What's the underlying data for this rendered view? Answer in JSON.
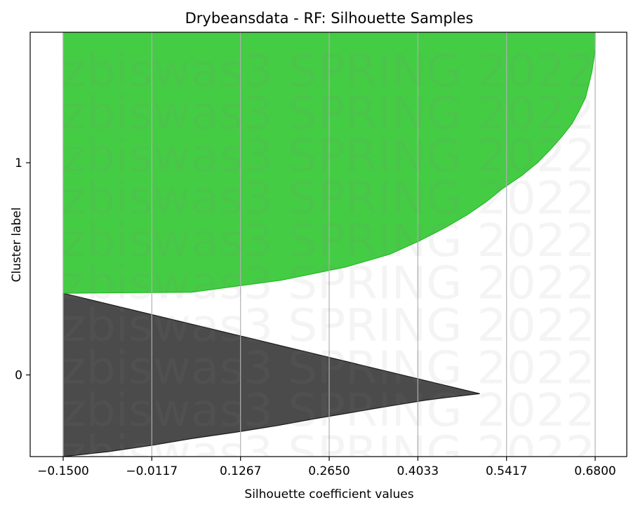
{
  "chart_data": {
    "type": "area",
    "title": "Drybeansdata - RF: Silhouette Samples",
    "xlabel": "Silhouette coefficient values",
    "ylabel": "Cluster label",
    "xlim": [
      -0.15,
      0.68
    ],
    "xticks": [
      "-0.1500",
      "-0.0117",
      "0.1267",
      "0.2650",
      "0.4033",
      "0.5417",
      "0.6800"
    ],
    "yticks": [
      "0",
      "1"
    ],
    "grid": "vertical",
    "watermark": "zbiswas3 SPRING 2022",
    "clusters": [
      {
        "label": "0",
        "color": "#4b4b4b",
        "edge": "#1a1a1a",
        "start": 0,
        "end": 0.385,
        "profile": [
          [
            0.0,
            -0.15
          ],
          [
            0.03,
            -0.08
          ],
          [
            0.07,
            -0.01
          ],
          [
            0.11,
            0.05
          ],
          [
            0.15,
            0.12
          ],
          [
            0.19,
            0.185
          ],
          [
            0.23,
            0.24
          ],
          [
            0.27,
            0.3
          ],
          [
            0.31,
            0.36
          ],
          [
            0.345,
            0.415
          ],
          [
            0.365,
            0.455
          ],
          [
            0.385,
            0.5
          ]
        ]
      },
      {
        "label": "1",
        "color": "#45cc45",
        "edge": "#22bb22",
        "start": 0.385,
        "end": 1.0,
        "profile": [
          [
            0.0,
            -0.15
          ],
          [
            0.004,
            0.05
          ],
          [
            0.05,
            0.19
          ],
          [
            0.1,
            0.29
          ],
          [
            0.15,
            0.36
          ],
          [
            0.2,
            0.405
          ],
          [
            0.25,
            0.445
          ],
          [
            0.3,
            0.48
          ],
          [
            0.35,
            0.51
          ],
          [
            0.4,
            0.535
          ],
          [
            0.45,
            0.565
          ],
          [
            0.5,
            0.59
          ],
          [
            0.55,
            0.61
          ],
          [
            0.6,
            0.628
          ],
          [
            0.65,
            0.644
          ],
          [
            0.7,
            0.655
          ],
          [
            0.75,
            0.665
          ],
          [
            0.8,
            0.67
          ],
          [
            0.85,
            0.675
          ],
          [
            0.9,
            0.678
          ],
          [
            0.95,
            0.68
          ],
          [
            1.0,
            0.68
          ]
        ]
      }
    ]
  }
}
